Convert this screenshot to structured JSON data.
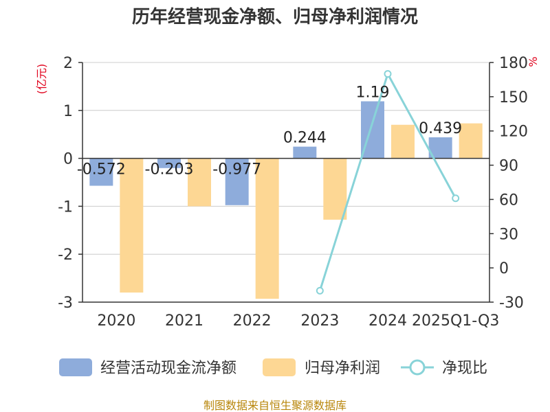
{
  "chart_data": {
    "type": "bar",
    "title": "历年经营现金净额、归母净利润情况",
    "categories": [
      "2020",
      "2021",
      "2022",
      "2023",
      "2024",
      "2025Q1-Q3"
    ],
    "left_axis": {
      "unit": "(亿元)",
      "ylim": [
        -3,
        2
      ],
      "ticks": [
        2,
        1,
        0,
        -1,
        -2,
        -3
      ]
    },
    "right_axis": {
      "unit": "%",
      "ylim": [
        -30,
        180
      ],
      "ticks": [
        180,
        150,
        120,
        90,
        60,
        30,
        0,
        -30
      ]
    },
    "series": [
      {
        "name": "经营活动现金流净额",
        "type": "bar",
        "axis": "left",
        "color": "#8eacdb",
        "values": [
          -0.572,
          -0.203,
          -0.977,
          0.244,
          1.19,
          0.439
        ],
        "labels": [
          "-0.572",
          "-0.203",
          "-0.977",
          "0.244",
          "1.19",
          "0.439"
        ]
      },
      {
        "name": "归母净利润",
        "type": "bar",
        "axis": "left",
        "color": "#fdd794",
        "values": [
          -2.8,
          -1.0,
          -2.93,
          -1.28,
          0.7,
          0.73
        ]
      },
      {
        "name": "净现比",
        "type": "line",
        "axis": "right",
        "color": "#88d3d8",
        "values": [
          null,
          null,
          null,
          -20,
          170,
          61
        ]
      }
    ],
    "legend_position": "bottom"
  },
  "source": "制图数据来自恒生聚源数据库"
}
